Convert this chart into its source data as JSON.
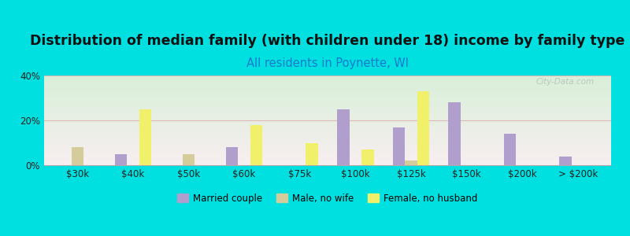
{
  "title": "Distribution of median family (with children under 18) income by family type",
  "subtitle": "All residents in Poynette, WI",
  "categories": [
    "$30k",
    "$40k",
    "$50k",
    "$60k",
    "$75k",
    "$100k",
    "$125k",
    "$150k",
    "$200k",
    "> $200k"
  ],
  "married_couple": [
    0,
    5,
    0,
    8,
    0,
    25,
    17,
    28,
    14,
    4
  ],
  "male_no_wife": [
    8,
    0,
    5,
    0,
    0,
    0,
    2,
    0,
    0,
    0
  ],
  "female_no_husband": [
    0,
    25,
    0,
    18,
    10,
    7,
    33,
    0,
    0,
    0
  ],
  "married_color": "#b09fcc",
  "male_color": "#d4cc9a",
  "female_color": "#f0f06a",
  "bg_outer": "#00e0e0",
  "ylim": [
    0,
    40
  ],
  "yticks": [
    0,
    20,
    40
  ],
  "bar_width": 0.22,
  "title_fontsize": 12.5,
  "subtitle_fontsize": 10.5,
  "watermark": "City-Data.com"
}
